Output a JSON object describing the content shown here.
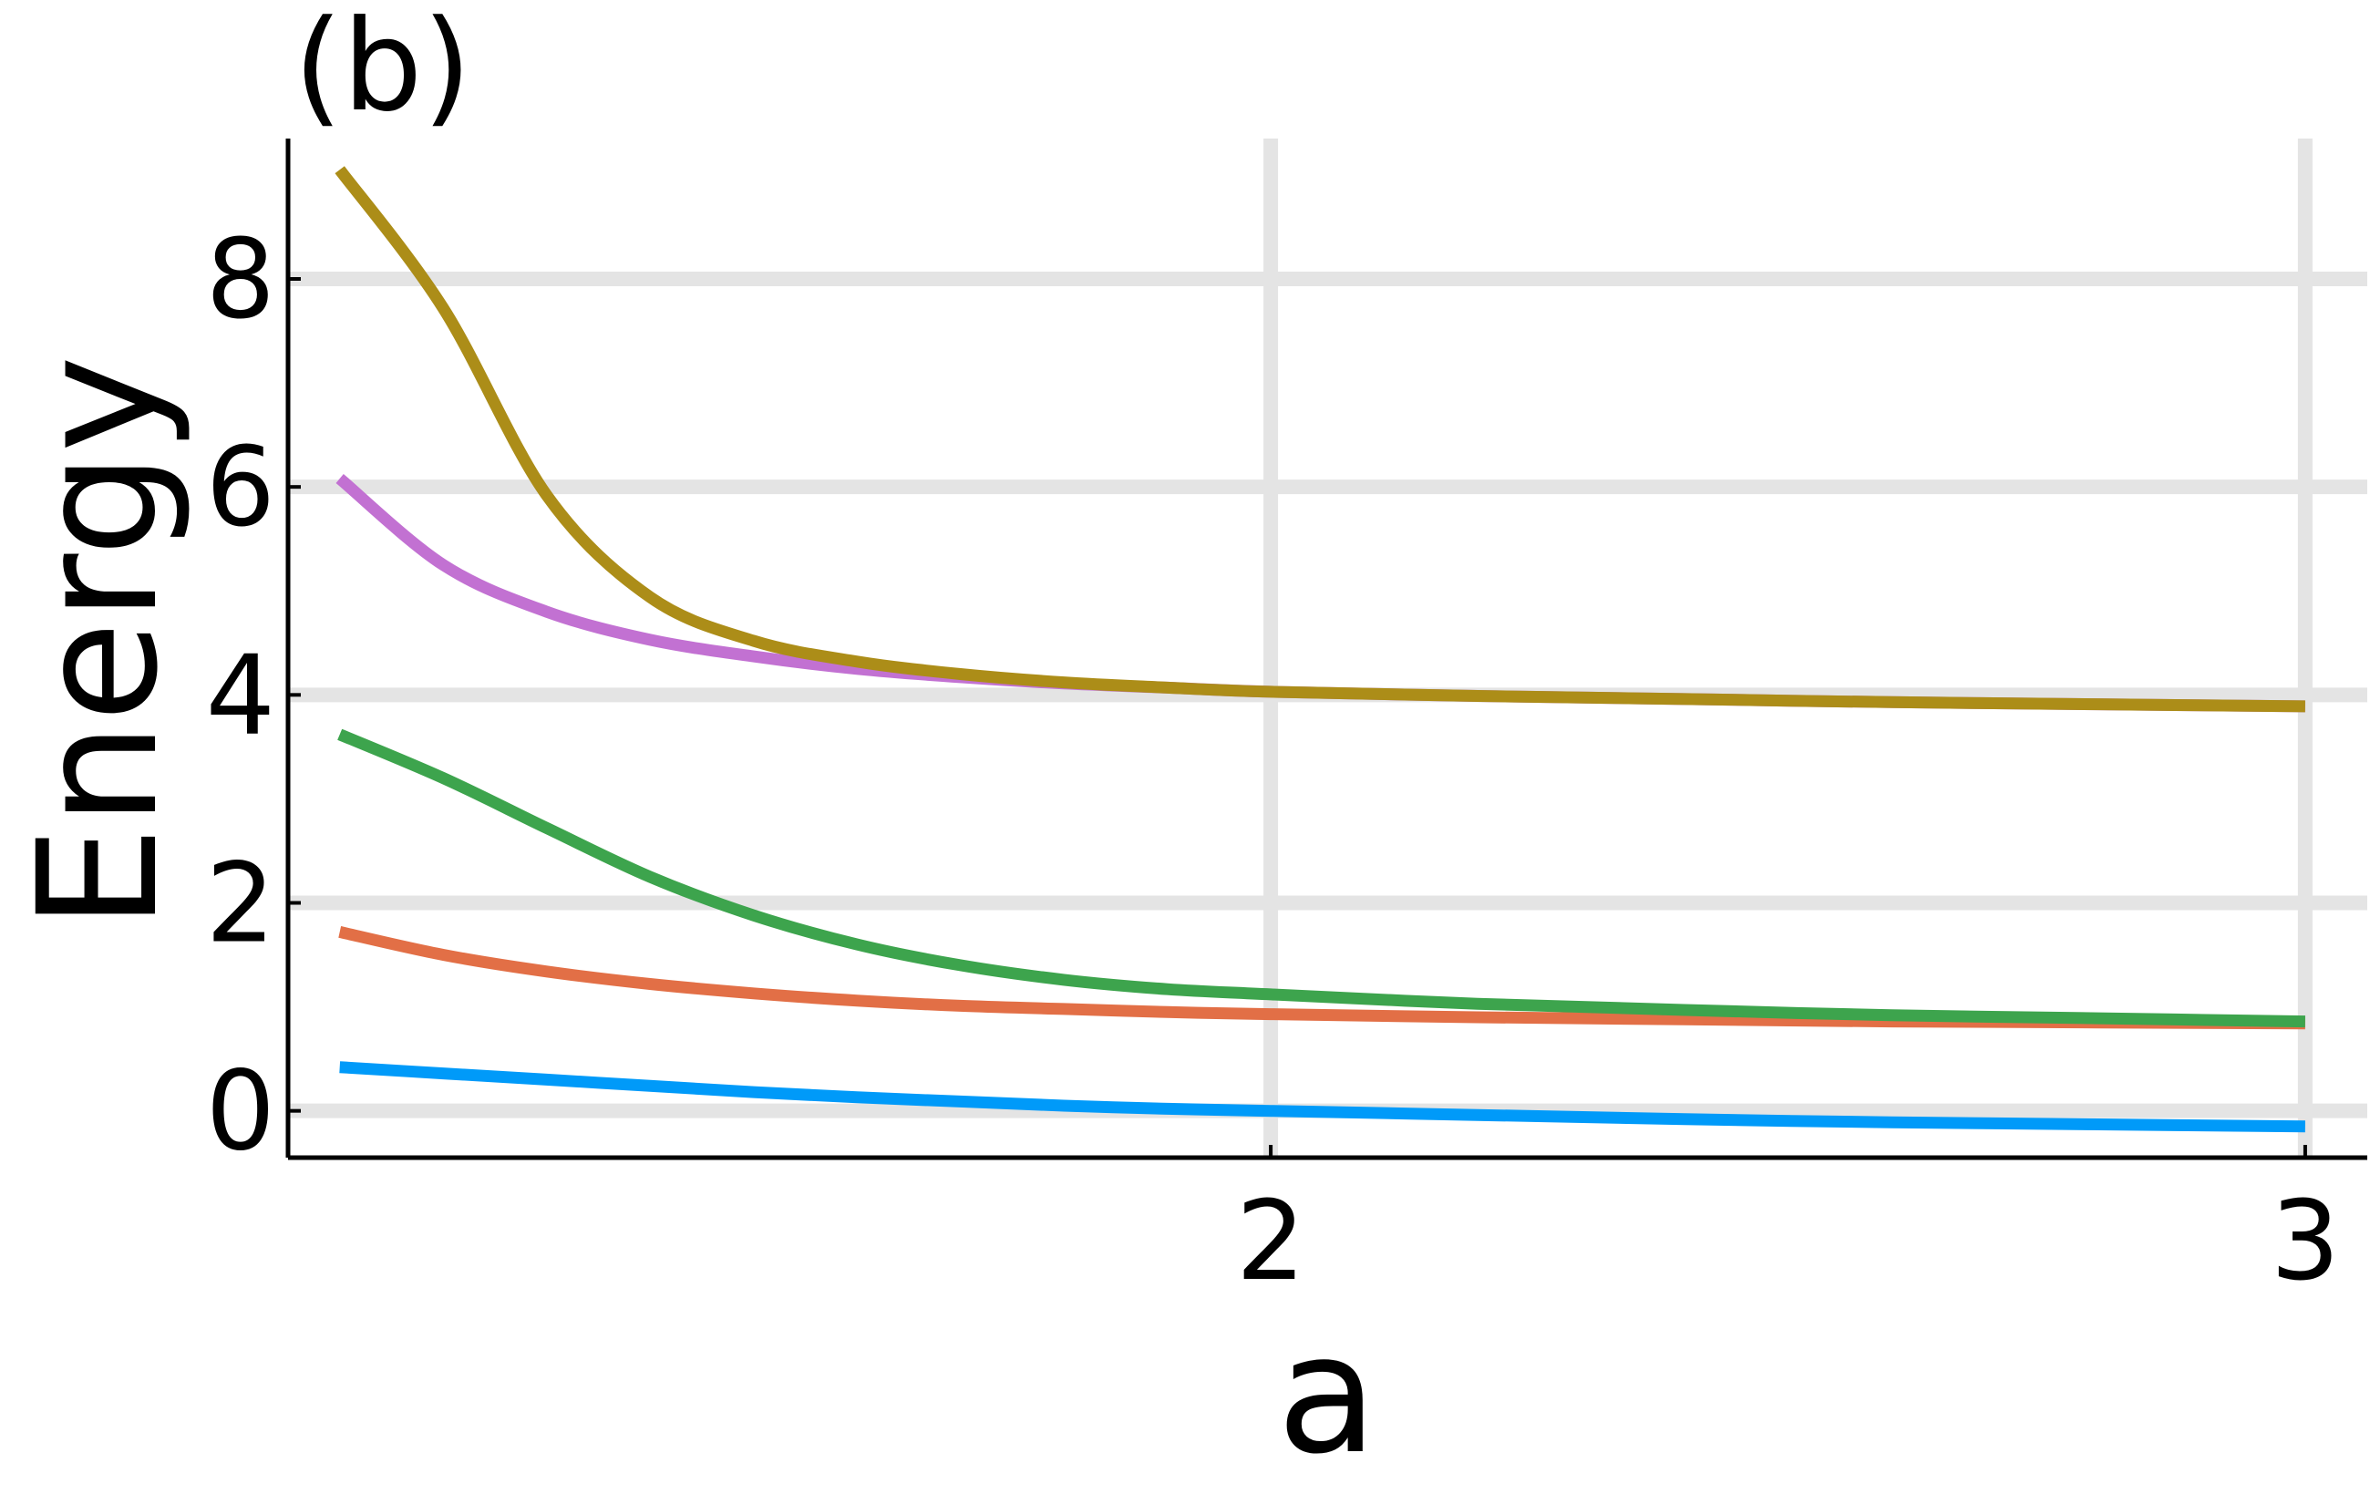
{
  "chart_data": {
    "type": "line",
    "panel_label": "(b)",
    "title": "",
    "xlabel": "a",
    "ylabel": "Energy",
    "xlim": [
      1.05,
      3.06
    ],
    "ylim": [
      -0.45,
      9.35
    ],
    "xticks": [
      2,
      3
    ],
    "xtick_labels": [
      "2",
      "3"
    ],
    "yticks": [
      0,
      2,
      4,
      6,
      8
    ],
    "ytick_labels": [
      "0",
      "2",
      "4",
      "6",
      "8"
    ],
    "grid": true,
    "legend": "none",
    "x": [
      1.1,
      1.2,
      1.3,
      1.4,
      1.5,
      1.6,
      1.7,
      1.8,
      1.9,
      2.0,
      2.2,
      2.4,
      2.6,
      2.8,
      3.0
    ],
    "series": [
      {
        "color": "#009af9",
        "values": [
          0.42,
          0.36,
          0.3,
          0.24,
          0.18,
          0.13,
          0.09,
          0.05,
          0.02,
          0.0,
          -0.04,
          -0.08,
          -0.11,
          -0.13,
          -0.15
        ]
      },
      {
        "color": "#e26f46",
        "values": [
          1.72,
          1.5,
          1.34,
          1.22,
          1.13,
          1.06,
          1.01,
          0.98,
          0.95,
          0.93,
          0.9,
          0.88,
          0.86,
          0.85,
          0.84
        ]
      },
      {
        "color": "#3da44d",
        "values": [
          3.62,
          3.2,
          2.72,
          2.25,
          1.88,
          1.6,
          1.4,
          1.26,
          1.17,
          1.12,
          1.03,
          0.97,
          0.92,
          0.89,
          0.86
        ]
      },
      {
        "color": "#c271d2",
        "values": [
          6.08,
          5.25,
          4.8,
          4.53,
          4.37,
          4.25,
          4.17,
          4.11,
          4.07,
          4.03,
          3.99,
          3.96,
          3.93,
          3.91,
          3.89
        ]
      },
      {
        "color": "#ac8d18",
        "values": [
          9.05,
          7.72,
          5.92,
          4.94,
          4.52,
          4.32,
          4.2,
          4.12,
          4.07,
          4.03,
          3.99,
          3.96,
          3.93,
          3.91,
          3.89
        ]
      }
    ]
  }
}
